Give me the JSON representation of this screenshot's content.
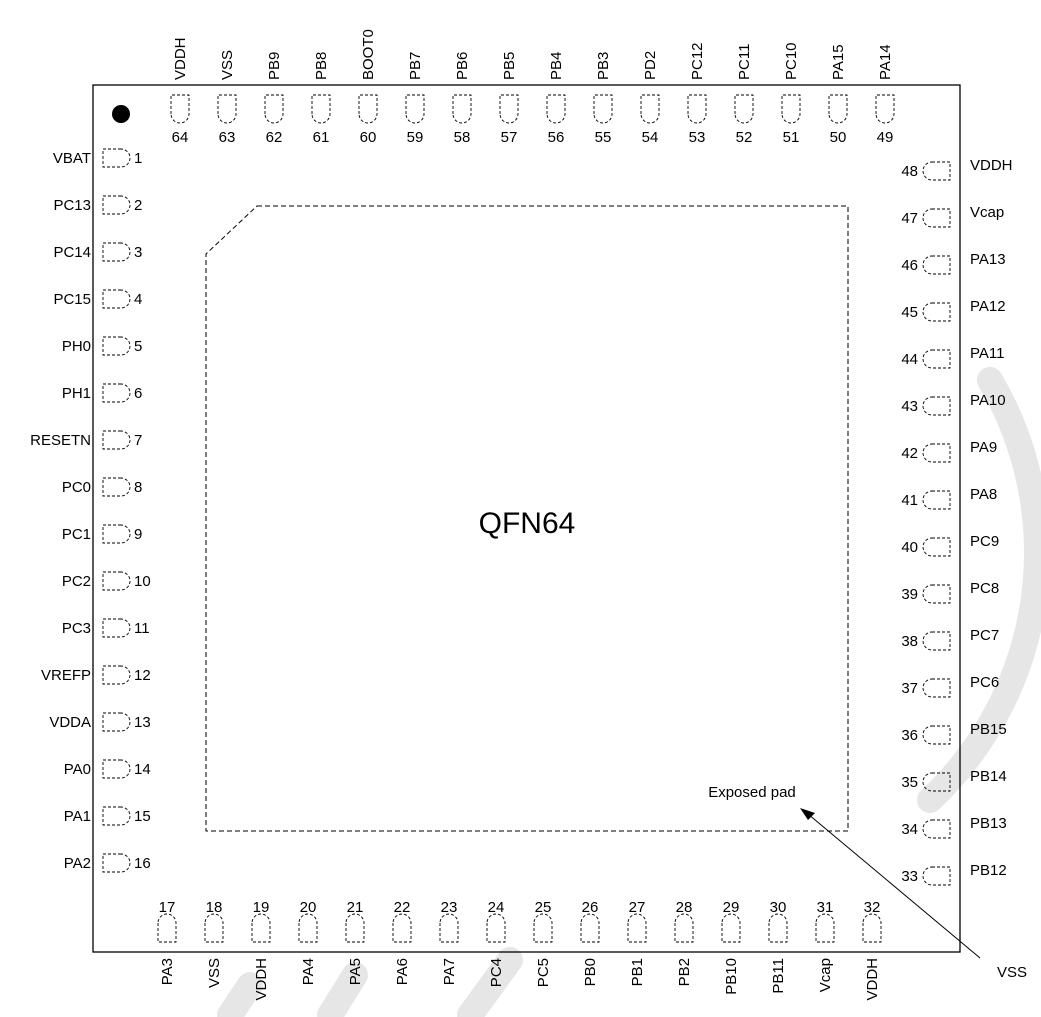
{
  "package_label": "QFN64",
  "exposed_pad_label": "Exposed pad",
  "exposed_pad_signal": "VSS",
  "pins": {
    "left": [
      [
        "1",
        "VBAT"
      ],
      [
        "2",
        "PC13"
      ],
      [
        "3",
        "PC14"
      ],
      [
        "4",
        "PC15"
      ],
      [
        "5",
        "PH0"
      ],
      [
        "6",
        "PH1"
      ],
      [
        "7",
        "RESETN"
      ],
      [
        "8",
        "PC0"
      ],
      [
        "9",
        "PC1"
      ],
      [
        "10",
        "PC2"
      ],
      [
        "11",
        "PC3"
      ],
      [
        "12",
        "VREFP"
      ],
      [
        "13",
        "VDDA"
      ],
      [
        "14",
        "PA0"
      ],
      [
        "15",
        "PA1"
      ],
      [
        "16",
        "PA2"
      ]
    ],
    "bottom": [
      [
        "17",
        "PA3"
      ],
      [
        "18",
        "VSS"
      ],
      [
        "19",
        "VDDH"
      ],
      [
        "20",
        "PA4"
      ],
      [
        "21",
        "PA5"
      ],
      [
        "22",
        "PA6"
      ],
      [
        "23",
        "PA7"
      ],
      [
        "24",
        "PC4"
      ],
      [
        "25",
        "PC5"
      ],
      [
        "26",
        "PB0"
      ],
      [
        "27",
        "PB1"
      ],
      [
        "28",
        "PB2"
      ],
      [
        "29",
        "PB10"
      ],
      [
        "30",
        "PB11"
      ],
      [
        "31",
        "Vcap"
      ],
      [
        "32",
        "VDDH"
      ]
    ],
    "right": [
      [
        "33",
        "PB12"
      ],
      [
        "34",
        "PB13"
      ],
      [
        "35",
        "PB14"
      ],
      [
        "36",
        "PB15"
      ],
      [
        "37",
        "PC6"
      ],
      [
        "38",
        "PC7"
      ],
      [
        "39",
        "PC8"
      ],
      [
        "40",
        "PC9"
      ],
      [
        "41",
        "PA8"
      ],
      [
        "42",
        "PA9"
      ],
      [
        "43",
        "PA10"
      ],
      [
        "44",
        "PA11"
      ],
      [
        "45",
        "PA12"
      ],
      [
        "46",
        "PA13"
      ],
      [
        "47",
        "Vcap"
      ],
      [
        "48",
        "VDDH"
      ]
    ],
    "top": [
      [
        "49",
        "PA14"
      ],
      [
        "50",
        "PA15"
      ],
      [
        "51",
        "PC10"
      ],
      [
        "52",
        "PC11"
      ],
      [
        "53",
        "PC12"
      ],
      [
        "54",
        "PD2"
      ],
      [
        "55",
        "PB3"
      ],
      [
        "56",
        "PB4"
      ],
      [
        "57",
        "PB5"
      ],
      [
        "58",
        "PB6"
      ],
      [
        "59",
        "PB7"
      ],
      [
        "60",
        "BOOT0"
      ],
      [
        "61",
        "PB8"
      ],
      [
        "62",
        "PB9"
      ],
      [
        "63",
        "VSS"
      ],
      [
        "64",
        "VDDH"
      ]
    ]
  }
}
